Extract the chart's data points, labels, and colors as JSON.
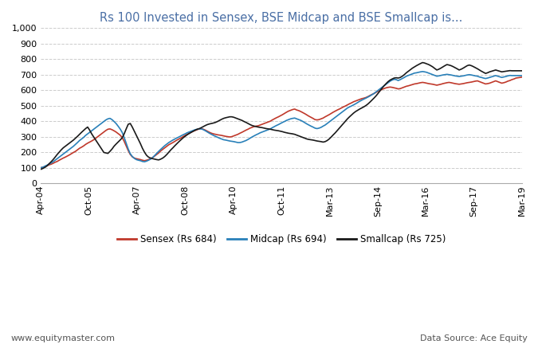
{
  "title": "Rs 100 Invested in Sensex, BSE Midcap and BSE Smallcap is...",
  "title_color": "#4a6fa5",
  "title_fontsize": 10.5,
  "footer_left": "www.equitymaster.com",
  "footer_right": "Data Source: Ace Equity",
  "footer_fontsize": 8,
  "ylim": [
    0,
    1000
  ],
  "yticks": [
    0,
    100,
    200,
    300,
    400,
    500,
    600,
    700,
    800,
    900,
    1000
  ],
  "sensex_color": "#c0392b",
  "midcap_color": "#2980b9",
  "smallcap_color": "#1a1a1a",
  "legend_labels": [
    "Sensex (Rs 684)",
    "Midcap (Rs 694)",
    "Smallcap (Rs 725)"
  ],
  "x_tick_labels": [
    "Apr-04",
    "Oct-05",
    "Apr-07",
    "Oct-08",
    "Apr-10",
    "Oct-11",
    "Mar-13",
    "Sep-14",
    "Mar-16",
    "Sep-17",
    "Mar-19"
  ],
  "grid_color": "#cccccc",
  "background_color": "#ffffff",
  "line_width": 1.2,
  "sensex_values": [
    100,
    102,
    108,
    112,
    118,
    122,
    128,
    135,
    140,
    148,
    155,
    162,
    168,
    175,
    182,
    190,
    198,
    205,
    215,
    225,
    232,
    240,
    250,
    258,
    265,
    272,
    280,
    290,
    300,
    310,
    320,
    330,
    340,
    348,
    350,
    345,
    338,
    330,
    320,
    310,
    295,
    270,
    240,
    210,
    185,
    170,
    162,
    158,
    155,
    152,
    148,
    145,
    148,
    152,
    158,
    165,
    175,
    185,
    195,
    208,
    218,
    228,
    238,
    248,
    255,
    262,
    270,
    278,
    285,
    292,
    300,
    308,
    315,
    322,
    328,
    335,
    340,
    345,
    350,
    352,
    348,
    342,
    335,
    328,
    322,
    318,
    315,
    312,
    310,
    308,
    305,
    302,
    300,
    298,
    300,
    305,
    310,
    315,
    322,
    328,
    335,
    342,
    348,
    355,
    360,
    365,
    368,
    370,
    375,
    380,
    385,
    390,
    395,
    400,
    408,
    415,
    422,
    428,
    435,
    442,
    450,
    458,
    465,
    470,
    475,
    478,
    472,
    468,
    462,
    455,
    448,
    440,
    432,
    425,
    418,
    410,
    408,
    410,
    415,
    420,
    428,
    435,
    442,
    450,
    458,
    465,
    472,
    478,
    485,
    492,
    498,
    505,
    512,
    518,
    525,
    530,
    535,
    540,
    545,
    548,
    552,
    558,
    565,
    572,
    578,
    585,
    592,
    598,
    605,
    610,
    615,
    618,
    620,
    618,
    615,
    612,
    608,
    610,
    615,
    620,
    625,
    628,
    632,
    636,
    640,
    642,
    645,
    648,
    650,
    648,
    645,
    642,
    640,
    638,
    635,
    632,
    635,
    638,
    642,
    645,
    648,
    650,
    648,
    645,
    642,
    640,
    638,
    640,
    642,
    645,
    648,
    650,
    652,
    655,
    658,
    660,
    655,
    650,
    645,
    640,
    642,
    645,
    650,
    655,
    660,
    655,
    650,
    645,
    648,
    652,
    658,
    662,
    668,
    672,
    678,
    680,
    682,
    684
  ],
  "midcap_values": [
    100,
    103,
    110,
    116,
    123,
    130,
    138,
    148,
    158,
    168,
    178,
    188,
    198,
    208,
    218,
    228,
    238,
    250,
    262,
    275,
    285,
    295,
    308,
    318,
    328,
    338,
    348,
    358,
    368,
    378,
    388,
    398,
    408,
    415,
    418,
    410,
    398,
    385,
    368,
    350,
    328,
    295,
    258,
    220,
    190,
    172,
    160,
    152,
    148,
    145,
    140,
    138,
    142,
    148,
    155,
    165,
    178,
    192,
    205,
    218,
    230,
    242,
    252,
    262,
    270,
    278,
    285,
    292,
    298,
    305,
    312,
    318,
    325,
    330,
    335,
    340,
    345,
    348,
    350,
    350,
    345,
    338,
    330,
    322,
    315,
    308,
    302,
    296,
    290,
    285,
    280,
    278,
    275,
    272,
    270,
    268,
    265,
    262,
    262,
    265,
    270,
    275,
    282,
    290,
    298,
    305,
    312,
    318,
    325,
    330,
    335,
    340,
    345,
    350,
    358,
    365,
    372,
    378,
    385,
    392,
    398,
    405,
    410,
    415,
    418,
    420,
    415,
    410,
    405,
    398,
    390,
    382,
    375,
    368,
    362,
    355,
    352,
    355,
    360,
    368,
    375,
    385,
    395,
    405,
    415,
    425,
    435,
    445,
    455,
    465,
    475,
    485,
    492,
    498,
    505,
    512,
    520,
    528,
    535,
    542,
    548,
    555,
    562,
    570,
    578,
    588,
    598,
    608,
    618,
    628,
    638,
    648,
    658,
    665,
    670,
    668,
    662,
    668,
    675,
    682,
    690,
    695,
    700,
    705,
    710,
    712,
    715,
    718,
    720,
    718,
    715,
    710,
    705,
    700,
    695,
    690,
    692,
    695,
    698,
    700,
    702,
    700,
    698,
    695,
    692,
    690,
    688,
    690,
    692,
    695,
    698,
    700,
    698,
    695,
    692,
    690,
    685,
    682,
    678,
    675,
    678,
    682,
    686,
    690,
    694,
    690,
    686,
    682,
    685,
    688,
    692,
    695,
    694,
    694,
    694,
    694,
    694,
    694
  ],
  "smallcap_values": [
    90,
    95,
    102,
    112,
    125,
    138,
    152,
    168,
    185,
    200,
    215,
    228,
    238,
    248,
    258,
    268,
    278,
    290,
    302,
    315,
    328,
    340,
    352,
    362,
    342,
    318,
    298,
    278,
    258,
    238,
    218,
    198,
    195,
    192,
    205,
    220,
    238,
    252,
    265,
    278,
    292,
    318,
    350,
    380,
    385,
    362,
    335,
    308,
    282,
    255,
    225,
    200,
    180,
    168,
    162,
    158,
    155,
    152,
    150,
    155,
    162,
    172,
    185,
    200,
    215,
    228,
    242,
    255,
    268,
    280,
    292,
    302,
    312,
    320,
    328,
    335,
    342,
    348,
    352,
    358,
    365,
    372,
    378,
    382,
    385,
    388,
    392,
    398,
    405,
    412,
    418,
    422,
    425,
    428,
    428,
    425,
    420,
    415,
    410,
    405,
    398,
    392,
    385,
    378,
    372,
    368,
    365,
    362,
    360,
    358,
    355,
    352,
    350,
    348,
    345,
    342,
    340,
    338,
    335,
    332,
    328,
    325,
    322,
    320,
    318,
    315,
    310,
    305,
    300,
    295,
    290,
    285,
    282,
    280,
    278,
    275,
    272,
    270,
    268,
    265,
    268,
    275,
    285,
    298,
    312,
    325,
    340,
    355,
    370,
    385,
    400,
    415,
    428,
    440,
    452,
    462,
    470,
    478,
    485,
    492,
    500,
    510,
    522,
    535,
    548,
    562,
    578,
    595,
    612,
    628,
    642,
    655,
    665,
    672,
    678,
    680,
    678,
    682,
    690,
    700,
    712,
    722,
    732,
    742,
    750,
    758,
    765,
    772,
    778,
    775,
    770,
    765,
    758,
    750,
    740,
    730,
    735,
    742,
    750,
    758,
    765,
    762,
    758,
    752,
    745,
    738,
    730,
    735,
    742,
    750,
    758,
    762,
    758,
    752,
    745,
    738,
    730,
    722,
    715,
    708,
    712,
    718,
    722,
    726,
    730,
    726,
    722,
    718,
    720,
    722,
    724,
    726,
    725,
    725,
    725,
    725,
    725,
    725
  ]
}
